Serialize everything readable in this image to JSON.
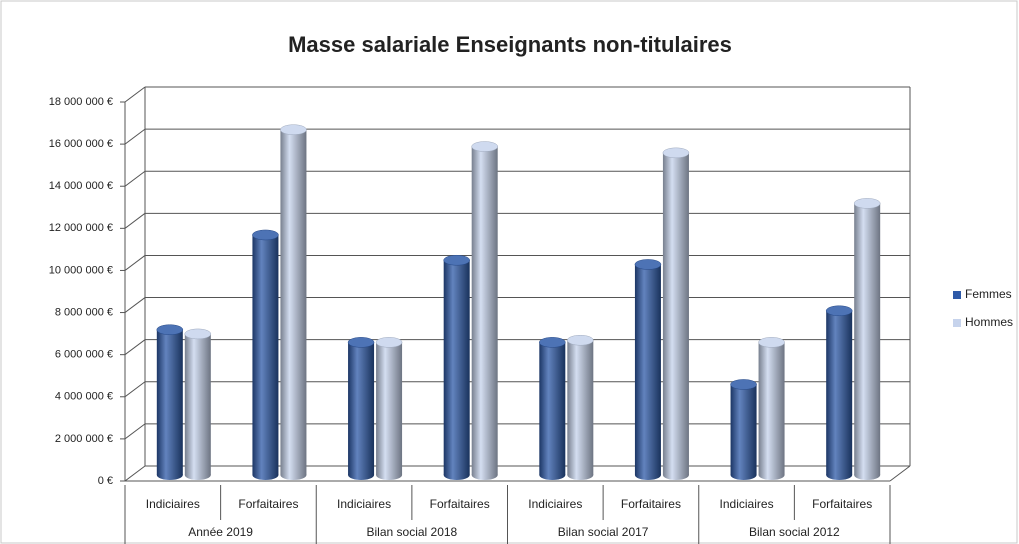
{
  "chart_data": {
    "type": "bar",
    "title": "Masse salariale Enseignants non-titulaires",
    "categories": [
      "Indiciaires",
      "Forfaitaires",
      "Indiciaires",
      "Forfaitaires",
      "Indiciaires",
      "Forfaitaires",
      "Indiciaires",
      "Forfaitaires"
    ],
    "groups": [
      "Année 2019",
      "Bilan social 2018",
      "Bilan social 2017",
      "Bilan social 2012"
    ],
    "series": [
      {
        "name": "Femmes",
        "color": "#2e5aa8",
        "values": [
          6900000,
          11400000,
          6300000,
          10200000,
          6300000,
          10000000,
          4300000,
          7800000
        ]
      },
      {
        "name": "Hommes",
        "color": "#c6d3ec",
        "values": [
          6700000,
          16400000,
          6300000,
          15600000,
          6400000,
          15300000,
          6300000,
          12900000
        ]
      }
    ],
    "ylim": [
      0,
      18000000
    ],
    "yticks": [
      {
        "value": 0,
        "label": "0 €"
      },
      {
        "value": 2000000,
        "label": "2 000 000 €"
      },
      {
        "value": 4000000,
        "label": "4 000 000 €"
      },
      {
        "value": 6000000,
        "label": "6 000 000 €"
      },
      {
        "value": 8000000,
        "label": "8 000 000 €"
      },
      {
        "value": 10000000,
        "label": "10 000 000 €"
      },
      {
        "value": 12000000,
        "label": "12 000 000 €"
      },
      {
        "value": 14000000,
        "label": "14 000 000 €"
      },
      {
        "value": 16000000,
        "label": "16 000 000 €"
      },
      {
        "value": 18000000,
        "label": "18 000 000 €"
      }
    ],
    "grid": true,
    "legend": "right"
  }
}
